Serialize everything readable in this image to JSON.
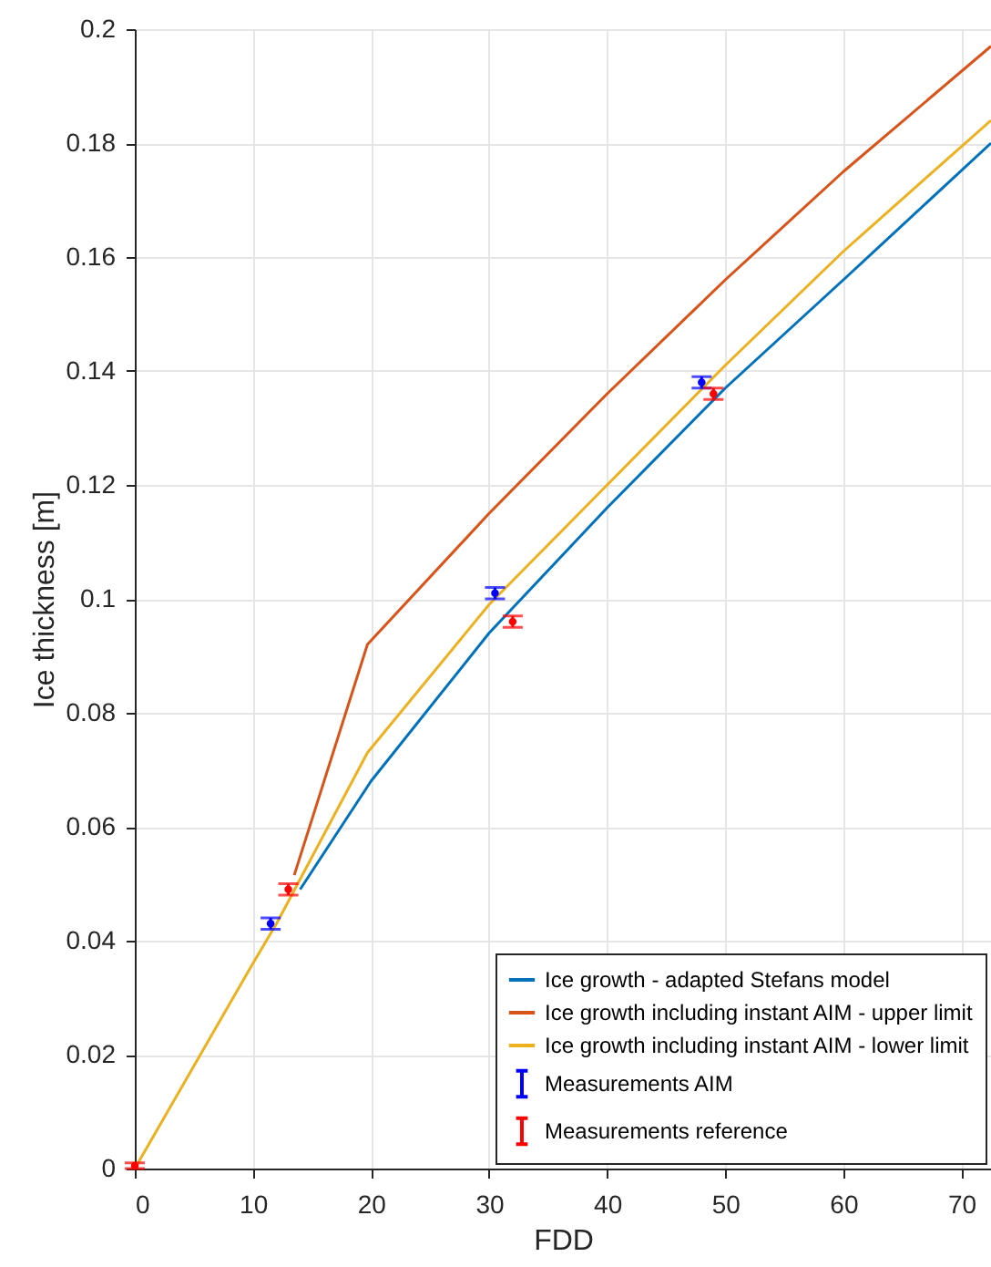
{
  "chart_data": {
    "type": "line",
    "xlabel": "FDD",
    "ylabel": "Ice thickness [m]",
    "xlim": [
      0,
      72.5
    ],
    "ylim": [
      0,
      0.2
    ],
    "xticks": [
      0,
      10,
      20,
      30,
      40,
      50,
      60,
      70
    ],
    "yticks": [
      0,
      0.02,
      0.04,
      0.06,
      0.08,
      0.1,
      0.12,
      0.14,
      0.16,
      0.18,
      0.2
    ],
    "grid": true,
    "legend": "bottom right",
    "series": [
      {
        "name": "Ice growth - adapted Stefans model",
        "color": "#0072bd",
        "x": [
          14,
          20,
          30,
          40,
          50,
          60,
          72.5
        ],
        "values": [
          0.049,
          0.068,
          0.094,
          0.116,
          0.137,
          0.156,
          0.18
        ]
      },
      {
        "name": "Ice growth including instant AIM - upper limit",
        "color": "#d95319",
        "x": [
          13.5,
          19.7,
          30,
          40,
          50,
          60,
          72.5
        ],
        "values": [
          0.0515,
          0.092,
          0.115,
          0.136,
          0.156,
          0.175,
          0.197
        ]
      },
      {
        "name": "Ice growth including instant AIM - lower limit",
        "color": "#edb120",
        "x": [
          0,
          5,
          10,
          12,
          19.7,
          30,
          40,
          50,
          60,
          72.5
        ],
        "values": [
          0,
          0.018,
          0.036,
          0.043,
          0.073,
          0.099,
          0.12,
          0.141,
          0.161,
          0.184
        ]
      },
      {
        "name": "Measurements AIM",
        "type": "scatter",
        "color": "#0000ff",
        "x": [
          11.5,
          30.5,
          48
        ],
        "values": [
          0.043,
          0.101,
          0.138
        ],
        "errors": [
          0.001,
          0.001,
          0.001
        ]
      },
      {
        "name": "Measurements reference",
        "type": "scatter",
        "color": "#ff0000",
        "x": [
          0,
          13,
          32,
          49
        ],
        "values": [
          0.0005,
          0.049,
          0.096,
          0.136
        ],
        "errors": [
          0.0005,
          0.001,
          0.001,
          0.001
        ]
      }
    ]
  }
}
